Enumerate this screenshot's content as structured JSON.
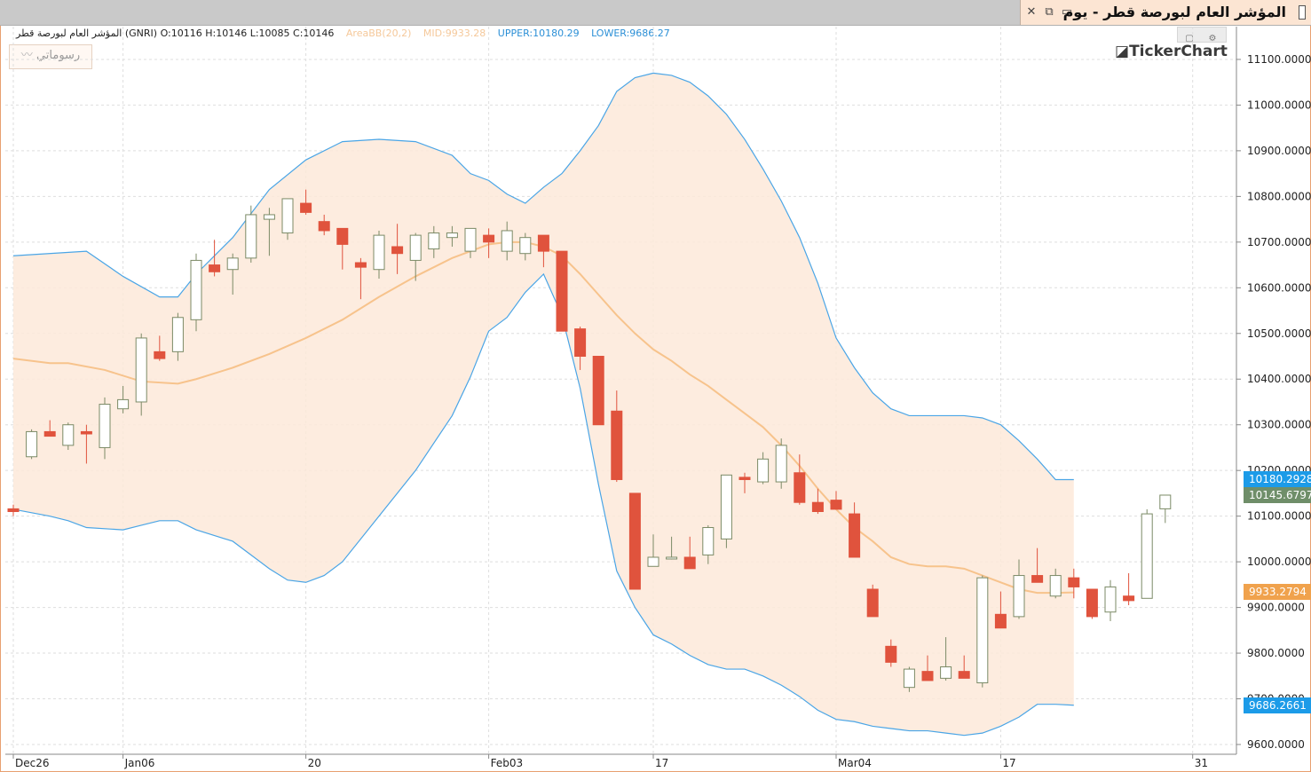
{
  "window": {
    "title": "المؤشر العام لبورصة قطر - يوم",
    "icons": [
      "close-icon",
      "restore-icon",
      "window-icon"
    ]
  },
  "legend": {
    "ohlc": "المؤشر العام لبورصة قطر (GNRI)  O:10116  H:10146  L:10085  C:10146",
    "bb_name": "AreaBB(20,2)",
    "bb_mid": "MID:9933.28",
    "bb_upper": "UPPER:10180.29",
    "bb_lower": "LOWER:9686.27"
  },
  "toolbar": {
    "drawings_label": "رسوماتي"
  },
  "watermark": "TickerChart",
  "price_labels": {
    "upper": "10180.2928",
    "close": "10145.6797",
    "mid": "9933.2794",
    "lower": "9686.2661"
  },
  "colors": {
    "up_body": "#ffffff",
    "up_outline": "#7b8a66",
    "down": "#e0533d",
    "band_fill": "#fde9d9",
    "upper_lower_line": "#4aa5e6",
    "mid_line": "#f7c38c",
    "upper_label": "#1c9be8",
    "mid_label": "#f0a24d",
    "close_label": "#6f8e69"
  },
  "chart_data": {
    "type": "candlestick",
    "ylim": [
      9590,
      11140
    ],
    "y_ticks": [
      "9600.0000",
      "9700.0000",
      "9800.0000",
      "9900.0000",
      "10000.0000",
      "10100.0000",
      "10200.0000",
      "10300.0000",
      "10400.0000",
      "10500.0000",
      "10600.0000",
      "10700.0000",
      "10800.0000",
      "10900.0000",
      "11000.0000",
      "11100.0000"
    ],
    "x_labels": [
      {
        "i": 0,
        "t": "Dec26"
      },
      {
        "i": 6,
        "t": "Jan06"
      },
      {
        "i": 16,
        "t": "20"
      },
      {
        "i": 26,
        "t": "Feb03"
      },
      {
        "i": 35,
        "t": "17"
      },
      {
        "i": 45,
        "t": "Mar04"
      },
      {
        "i": 54,
        "t": "17"
      },
      {
        "i": 64.5,
        "t": "31"
      }
    ],
    "candles": [
      [
        10116,
        10125,
        10100,
        10110
      ],
      [
        10230,
        10290,
        10225,
        10285
      ],
      [
        10285,
        10310,
        10275,
        10275
      ],
      [
        10255,
        10305,
        10245,
        10300
      ],
      [
        10285,
        10300,
        10215,
        10280
      ],
      [
        10250,
        10360,
        10225,
        10345
      ],
      [
        10335,
        10385,
        10325,
        10355
      ],
      [
        10350,
        10500,
        10320,
        10490
      ],
      [
        10460,
        10495,
        10440,
        10445
      ],
      [
        10460,
        10545,
        10440,
        10535
      ],
      [
        10530,
        10675,
        10505,
        10660
      ],
      [
        10650,
        10705,
        10625,
        10635
      ],
      [
        10640,
        10675,
        10585,
        10665
      ],
      [
        10665,
        10780,
        10655,
        10760
      ],
      [
        10750,
        10775,
        10670,
        10760
      ],
      [
        10720,
        10795,
        10705,
        10795
      ],
      [
        10785,
        10815,
        10760,
        10765
      ],
      [
        10745,
        10760,
        10715,
        10725
      ],
      [
        10730,
        10730,
        10640,
        10695
      ],
      [
        10655,
        10665,
        10575,
        10645
      ],
      [
        10640,
        10725,
        10620,
        10715
      ],
      [
        10690,
        10740,
        10630,
        10675
      ],
      [
        10660,
        10720,
        10615,
        10715
      ],
      [
        10685,
        10735,
        10665,
        10720
      ],
      [
        10710,
        10735,
        10690,
        10720
      ],
      [
        10680,
        10730,
        10665,
        10730
      ],
      [
        10715,
        10730,
        10665,
        10700
      ],
      [
        10680,
        10745,
        10660,
        10725
      ],
      [
        10675,
        10720,
        10660,
        10710
      ],
      [
        10715,
        10715,
        10645,
        10680
      ],
      [
        10680,
        10680,
        10505,
        10505
      ],
      [
        10510,
        10515,
        10420,
        10450
      ],
      [
        10450,
        10450,
        10300,
        10300
      ],
      [
        10330,
        10375,
        10175,
        10180
      ],
      [
        10150,
        10150,
        9940,
        9940
      ],
      [
        9990,
        10060,
        9990,
        10010
      ],
      [
        10010,
        10055,
        10005,
        10010
      ],
      [
        10010,
        10055,
        9985,
        9985
      ],
      [
        10015,
        10080,
        9995,
        10075
      ],
      [
        10050,
        10190,
        10030,
        10190
      ],
      [
        10185,
        10195,
        10150,
        10180
      ],
      [
        10175,
        10240,
        10170,
        10225
      ],
      [
        10175,
        10270,
        10160,
        10255
      ],
      [
        10195,
        10235,
        10125,
        10130
      ],
      [
        10130,
        10160,
        10105,
        10110
      ],
      [
        10135,
        10155,
        10120,
        10115
      ],
      [
        10105,
        10130,
        10010,
        10010
      ],
      [
        9940,
        9950,
        9880,
        9880
      ],
      [
        9815,
        9830,
        9770,
        9780
      ],
      [
        9725,
        9770,
        9715,
        9765
      ],
      [
        9760,
        9795,
        9740,
        9740
      ],
      [
        9745,
        9835,
        9740,
        9770
      ],
      [
        9760,
        9795,
        9745,
        9745
      ],
      [
        9735,
        9970,
        9725,
        9965
      ],
      [
        9885,
        9935,
        9855,
        9855
      ],
      [
        9880,
        10005,
        9875,
        9970
      ],
      [
        9970,
        10030,
        9955,
        9955
      ],
      [
        9925,
        9985,
        9920,
        9970
      ],
      [
        9965,
        9985,
        9920,
        9945
      ],
      [
        9940,
        9940,
        9875,
        9880
      ],
      [
        9890,
        9960,
        9870,
        9945
      ],
      [
        9925,
        9975,
        9905,
        9915
      ],
      [
        9920,
        10115,
        9920,
        10105
      ],
      [
        10116,
        10146,
        10085,
        10146
      ]
    ],
    "upper": [
      [
        0,
        10670
      ],
      [
        4,
        10680
      ],
      [
        6,
        10625
      ],
      [
        8,
        10580
      ],
      [
        9,
        10580
      ],
      [
        10,
        10630
      ],
      [
        12,
        10710
      ],
      [
        14,
        10815
      ],
      [
        16,
        10880
      ],
      [
        18,
        10920
      ],
      [
        20,
        10925
      ],
      [
        22,
        10920
      ],
      [
        24,
        10890
      ],
      [
        25,
        10850
      ],
      [
        26,
        10835
      ],
      [
        27,
        10805
      ],
      [
        28,
        10785
      ],
      [
        29,
        10820
      ],
      [
        30,
        10850
      ],
      [
        31,
        10900
      ],
      [
        32,
        10955
      ],
      [
        33,
        11030
      ],
      [
        34,
        11060
      ],
      [
        35,
        11070
      ],
      [
        36,
        11065
      ],
      [
        37,
        11050
      ],
      [
        38,
        11020
      ],
      [
        39,
        10980
      ],
      [
        40,
        10925
      ],
      [
        41,
        10860
      ],
      [
        42,
        10790
      ],
      [
        43,
        10710
      ],
      [
        44,
        10610
      ],
      [
        45,
        10490
      ],
      [
        46,
        10425
      ],
      [
        47,
        10370
      ],
      [
        48,
        10335
      ],
      [
        49,
        10320
      ],
      [
        50,
        10320
      ],
      [
        51,
        10320
      ],
      [
        52,
        10320
      ],
      [
        53,
        10315
      ],
      [
        54,
        10300
      ],
      [
        55,
        10265
      ],
      [
        56,
        10225
      ],
      [
        57,
        10180
      ],
      [
        58,
        10180
      ]
    ],
    "mid": [
      [
        0,
        10445
      ],
      [
        2,
        10435
      ],
      [
        3,
        10435
      ],
      [
        5,
        10420
      ],
      [
        7,
        10395
      ],
      [
        9,
        10390
      ],
      [
        10,
        10400
      ],
      [
        12,
        10425
      ],
      [
        14,
        10455
      ],
      [
        16,
        10490
      ],
      [
        18,
        10530
      ],
      [
        20,
        10580
      ],
      [
        22,
        10625
      ],
      [
        24,
        10665
      ],
      [
        26,
        10695
      ],
      [
        27,
        10700
      ],
      [
        28,
        10700
      ],
      [
        29,
        10690
      ],
      [
        30,
        10670
      ],
      [
        31,
        10630
      ],
      [
        32,
        10585
      ],
      [
        33,
        10540
      ],
      [
        34,
        10500
      ],
      [
        35,
        10465
      ],
      [
        36,
        10440
      ],
      [
        37,
        10410
      ],
      [
        38,
        10385
      ],
      [
        39,
        10355
      ],
      [
        40,
        10325
      ],
      [
        41,
        10295
      ],
      [
        42,
        10255
      ],
      [
        43,
        10210
      ],
      [
        44,
        10160
      ],
      [
        45,
        10115
      ],
      [
        46,
        10075
      ],
      [
        47,
        10045
      ],
      [
        48,
        10010
      ],
      [
        49,
        9995
      ],
      [
        50,
        9990
      ],
      [
        51,
        9990
      ],
      [
        52,
        9985
      ],
      [
        53,
        9970
      ],
      [
        54,
        9955
      ],
      [
        55,
        9940
      ],
      [
        56,
        9932
      ],
      [
        57,
        9932
      ],
      [
        58,
        9933
      ]
    ],
    "lower": [
      [
        0,
        10115
      ],
      [
        2,
        10100
      ],
      [
        3,
        10090
      ],
      [
        4,
        10075
      ],
      [
        6,
        10070
      ],
      [
        7,
        10080
      ],
      [
        8,
        10090
      ],
      [
        9,
        10090
      ],
      [
        10,
        10070
      ],
      [
        12,
        10045
      ],
      [
        14,
        9985
      ],
      [
        15,
        9960
      ],
      [
        16,
        9955
      ],
      [
        17,
        9970
      ],
      [
        18,
        10000
      ],
      [
        20,
        10100
      ],
      [
        22,
        10200
      ],
      [
        24,
        10320
      ],
      [
        25,
        10405
      ],
      [
        26,
        10505
      ],
      [
        27,
        10535
      ],
      [
        28,
        10590
      ],
      [
        29,
        10630
      ],
      [
        30,
        10540
      ],
      [
        31,
        10380
      ],
      [
        32,
        10170
      ],
      [
        33,
        9980
      ],
      [
        34,
        9900
      ],
      [
        35,
        9840
      ],
      [
        36,
        9820
      ],
      [
        37,
        9795
      ],
      [
        38,
        9775
      ],
      [
        39,
        9765
      ],
      [
        40,
        9765
      ],
      [
        41,
        9750
      ],
      [
        42,
        9730
      ],
      [
        43,
        9705
      ],
      [
        44,
        9675
      ],
      [
        45,
        9655
      ],
      [
        46,
        9650
      ],
      [
        47,
        9640
      ],
      [
        48,
        9635
      ],
      [
        49,
        9630
      ],
      [
        50,
        9630
      ],
      [
        51,
        9625
      ],
      [
        52,
        9620
      ],
      [
        53,
        9625
      ],
      [
        54,
        9640
      ],
      [
        55,
        9660
      ],
      [
        56,
        9688
      ],
      [
        57,
        9688
      ],
      [
        58,
        9686
      ]
    ]
  }
}
